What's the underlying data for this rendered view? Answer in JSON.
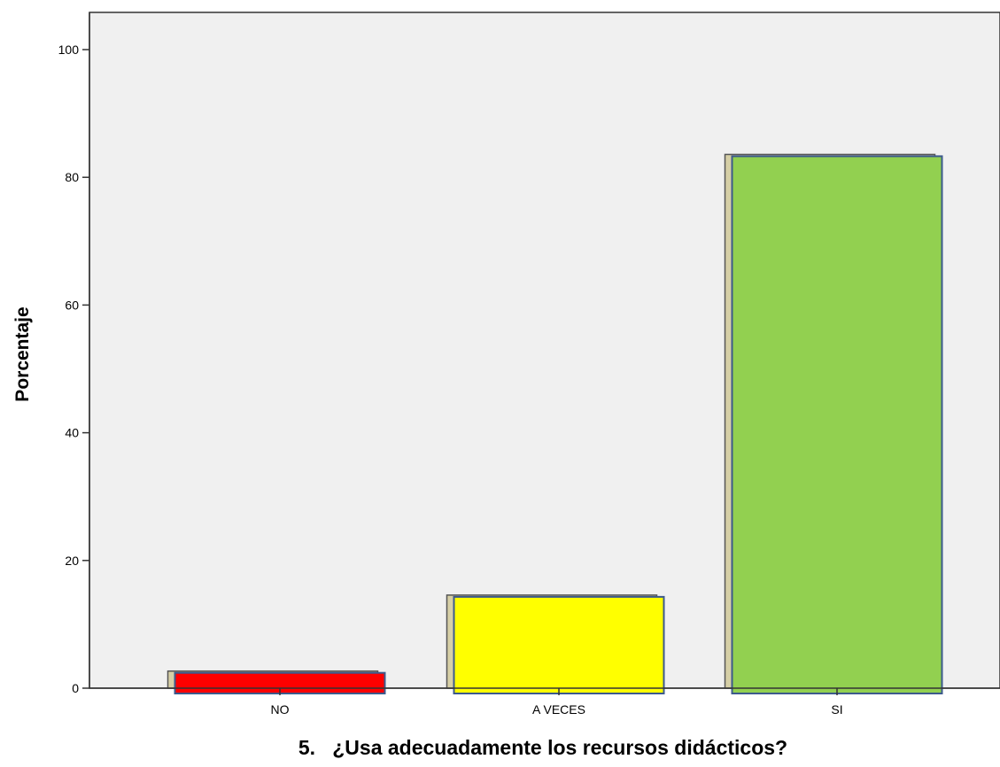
{
  "chart_data": {
    "type": "bar",
    "xlabel": "5.   ¿Usa adecuadamente los recursos didácticos?",
    "ylabel": "Porcentaje",
    "categories": [
      "NO",
      "A VECES",
      "SI"
    ],
    "values": [
      2.4,
      14.3,
      83.3
    ],
    "ylim": [
      0,
      100
    ],
    "yticks": [
      "0",
      "20",
      "40",
      "60",
      "80",
      "100"
    ],
    "grid": false,
    "legend": "none",
    "colors": {
      "bars": [
        "#ff0000",
        "#ffff00",
        "#92d050"
      ],
      "bar_border": "#3c5a8c",
      "shadow": "#d6cfa6",
      "shadow_border": "#555555",
      "plot_background": "#f0f0f0"
    }
  }
}
